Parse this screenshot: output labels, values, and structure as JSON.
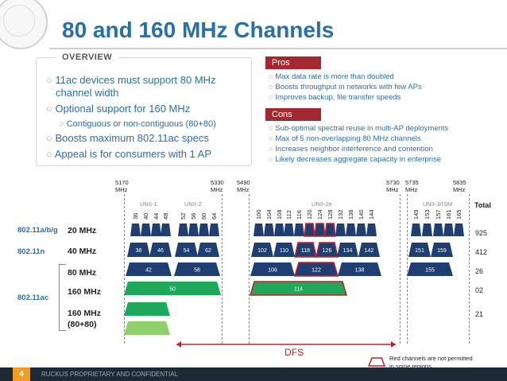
{
  "slide": {
    "title": "80 and 160 MHz Channels",
    "page_number": "4",
    "footer": "RUCKUS PROPRIETARY AND CONFIDENTIAL"
  },
  "overview": {
    "label": "OVERVIEW",
    "items": [
      "11ac devices must support 80 MHz",
      "channel width",
      "Optional support for 160 MHz",
      "Contiguous or non-contiguous (80+80)",
      "Boosts maximum 802.11ac specs",
      "Appeal is for consumers with 1 AP"
    ]
  },
  "pros": {
    "label": "Pros",
    "items": [
      "Max data rate is more than doubled",
      "Boosts throughput in networks with few APs",
      "Improves backup, file transfer speeds"
    ]
  },
  "cons": {
    "label": "Cons",
    "items": [
      "Sub-optimal spectral reuse in multi-AP deployments",
      "Max of 5 non-overlapping 80 MHz channels",
      "Increases neighbor interference and contention",
      "Likely decreases aggregate capacity in enterprise"
    ]
  },
  "spectrum": {
    "freqs": [
      {
        "line1": "5170",
        "line2": "MHz"
      },
      {
        "line1": "5330",
        "line2": "MHz"
      },
      {
        "line1": "5490",
        "line2": "MHz"
      },
      {
        "line1": "5730",
        "line2": "MHz"
      },
      {
        "line1": "5735",
        "line2": "MHz"
      },
      {
        "line1": "5835",
        "line2": "MHz"
      }
    ],
    "bands": [
      "UNII-1",
      "UNII-2",
      "UNII-2e",
      "UNII-3/ISM"
    ],
    "channels": [
      "36",
      "40",
      "44",
      "48",
      "52",
      "56",
      "60",
      "64",
      "100",
      "104",
      "108",
      "112",
      "116",
      "120",
      "124",
      "128",
      "132",
      "136",
      "140",
      "144",
      "149",
      "153",
      "157",
      "161",
      "165"
    ],
    "total_label": "Total",
    "rows": {
      "r20": "20 MHz",
      "r40": "40 MHz",
      "r80": "80 MHz",
      "r160": "160 MHz",
      "r8080a": "160 MHz",
      "r8080b": "(80+80)"
    },
    "std": {
      "abg": "802.11a/b/g",
      "n": "802.11n",
      "ac": "802.11ac"
    },
    "ch40": [
      "38",
      "46",
      "54",
      "62",
      "102",
      "110",
      "118",
      "126",
      "134",
      "142",
      "151",
      "159"
    ],
    "ch80": [
      "42",
      "58",
      "106",
      "122",
      "138",
      "155"
    ],
    "ch160": [
      "50",
      "114"
    ],
    "totals": {
      "t20a": "9",
      "t20b": "25",
      "t40a": "4",
      "t40b": "12",
      "t80a": "2",
      "t80b": "6",
      "t160a": "0",
      "t160b": "2",
      "t8080a": "2",
      "t8080b": "1"
    },
    "dfs_label": "DFS",
    "legend_line1": "Red channels are not permitted",
    "legend_line2": "in some regions",
    "colors": {
      "blue": "#1f3f73",
      "green": "#1fa85a",
      "light_green": "#8fd06a",
      "red": "#c0202a"
    }
  }
}
